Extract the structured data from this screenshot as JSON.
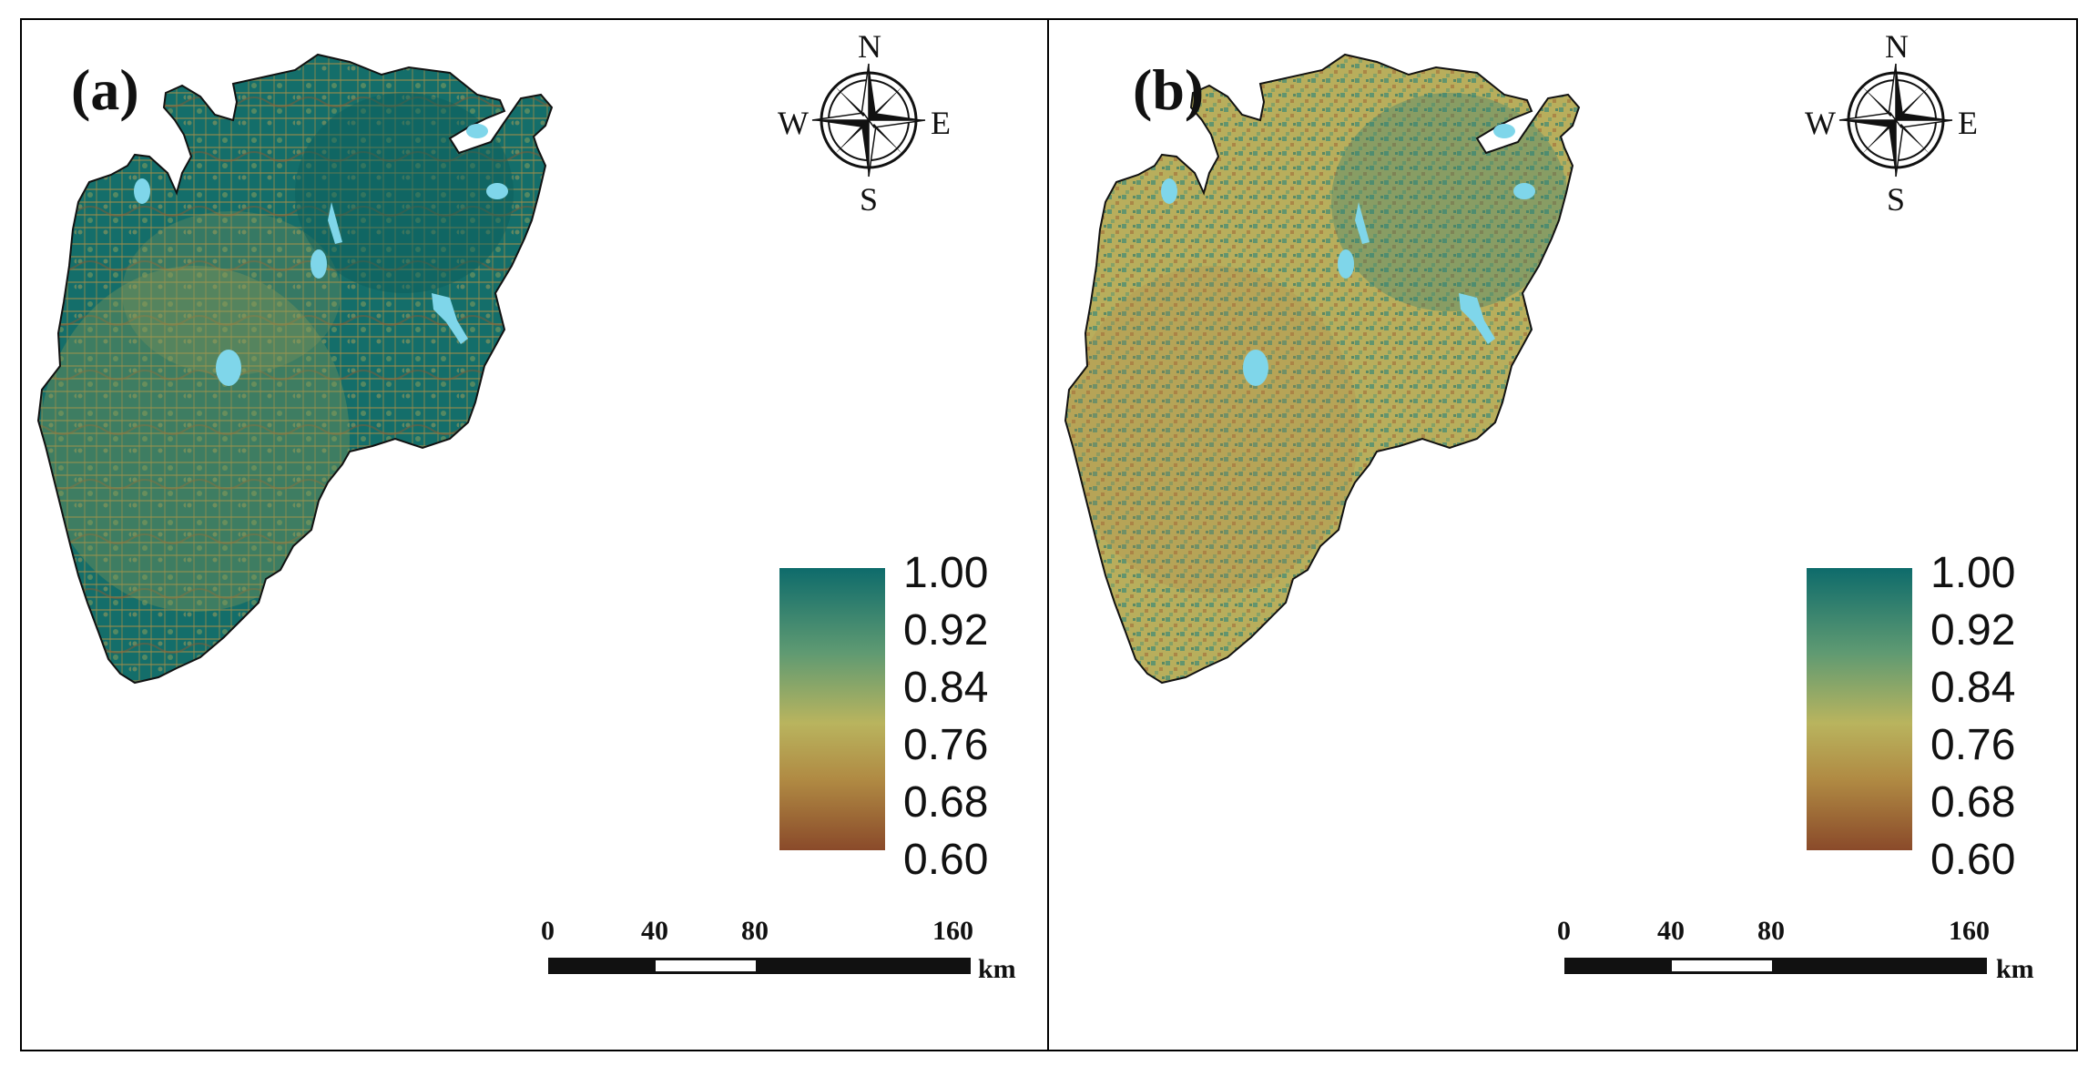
{
  "panels": [
    {
      "label": "(a)",
      "legend": [
        "1.00",
        "0.92",
        "0.84",
        "0.76",
        "0.68",
        "0.60"
      ],
      "legend_range": [
        0.6,
        1.0
      ],
      "scale_bar": {
        "ticks": [
          "0",
          "40",
          "80",
          "160"
        ],
        "unit": "km"
      },
      "compass": {
        "north": "N",
        "south": "S",
        "east": "E",
        "west": "W"
      }
    },
    {
      "label": "(b)",
      "legend": [
        "1.00",
        "0.92",
        "0.84",
        "0.76",
        "0.68",
        "0.60"
      ],
      "legend_range": [
        0.6,
        1.0
      ],
      "scale_bar": {
        "ticks": [
          "0",
          "40",
          "80",
          "160"
        ],
        "unit": "km"
      },
      "compass": {
        "north": "N",
        "south": "S",
        "east": "E",
        "west": "W"
      }
    }
  ],
  "colors": {
    "high": "#0e6b6b",
    "mid_high": "#5f9a72",
    "mid": "#b9b45e",
    "mid_low": "#b08a43",
    "low": "#8a4a2a",
    "water": "#7fd6ea"
  }
}
